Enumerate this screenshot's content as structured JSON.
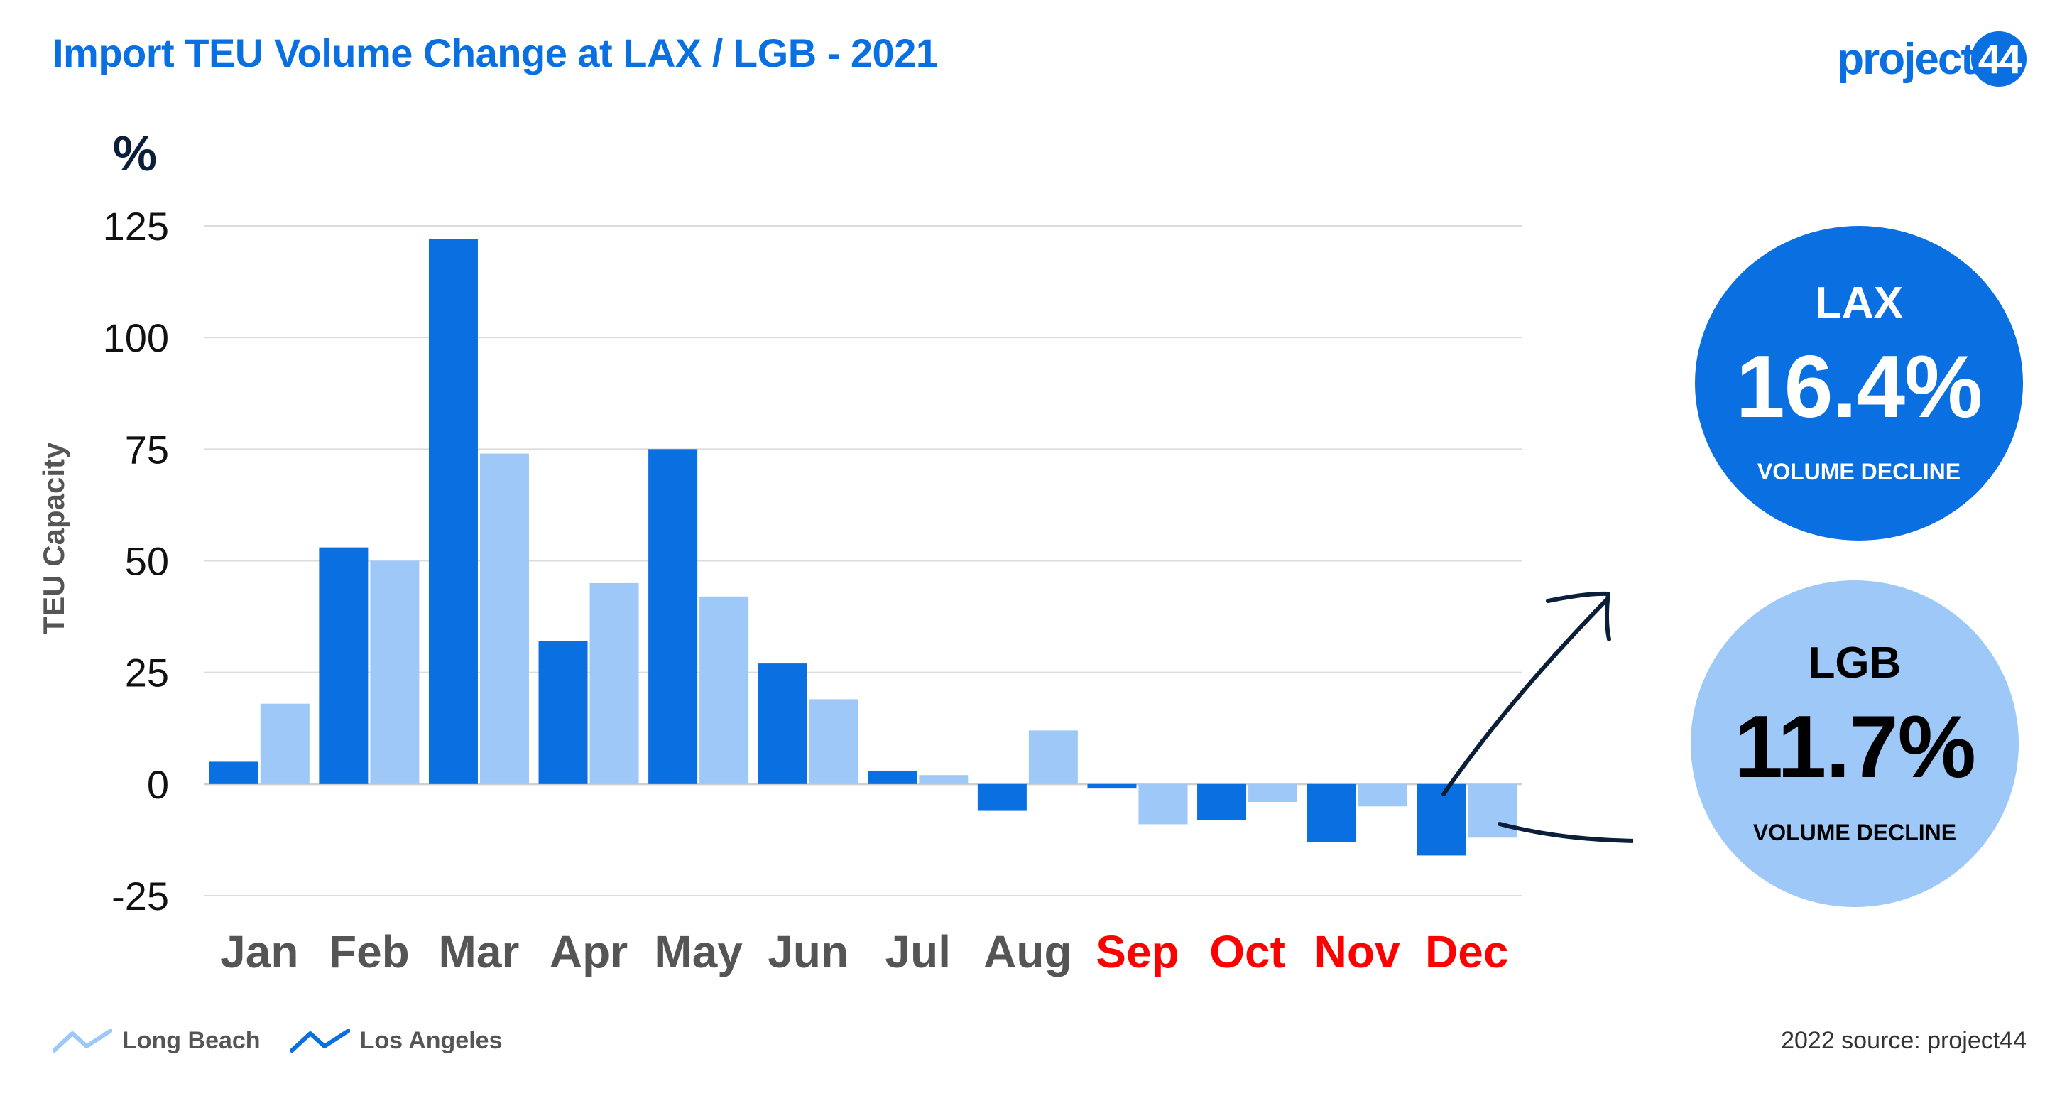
{
  "header": {
    "title": "Import TEU Volume Change at LAX / LGB - 2021",
    "logo_text": "project",
    "logo_badge": "44"
  },
  "colors": {
    "los_angeles": "#0a6fe0",
    "long_beach": "#9dc8f7",
    "highlight_month": "#ff0000",
    "normal_month": "#555555",
    "arrow": "#0b1f3a"
  },
  "chart_data": {
    "type": "bar",
    "unit_label": "%",
    "ylabel": "TEU Capacity",
    "ylim": [
      -25,
      125
    ],
    "yticks": [
      125,
      100,
      75,
      50,
      25,
      0,
      -25
    ],
    "grid": true,
    "categories": [
      "Jan",
      "Feb",
      "Mar",
      "Apr",
      "May",
      "Jun",
      "Jul",
      "Aug",
      "Sep",
      "Oct",
      "Nov",
      "Dec"
    ],
    "highlighted_categories": [
      "Sep",
      "Oct",
      "Nov",
      "Dec"
    ],
    "series": [
      {
        "name": "Los Angeles",
        "values": [
          5,
          53,
          122,
          32,
          75,
          27,
          3,
          -6,
          -1,
          -8,
          -13,
          -16
        ]
      },
      {
        "name": "Long Beach",
        "values": [
          18,
          50,
          74,
          45,
          42,
          19,
          2,
          12,
          -9,
          -4,
          -5,
          -12
        ]
      }
    ],
    "legend_placement": "bottom-left"
  },
  "callouts": {
    "lax": {
      "name": "LAX",
      "value": "16.4%",
      "label": "VOLUME DECLINE"
    },
    "lgb": {
      "name": "LGB",
      "value": "11.7%",
      "label": "VOLUME DECLINE"
    }
  },
  "legend": {
    "long_beach": "Long Beach",
    "los_angeles": "Los Angeles"
  },
  "footer": {
    "source": "2022 source: project44"
  }
}
